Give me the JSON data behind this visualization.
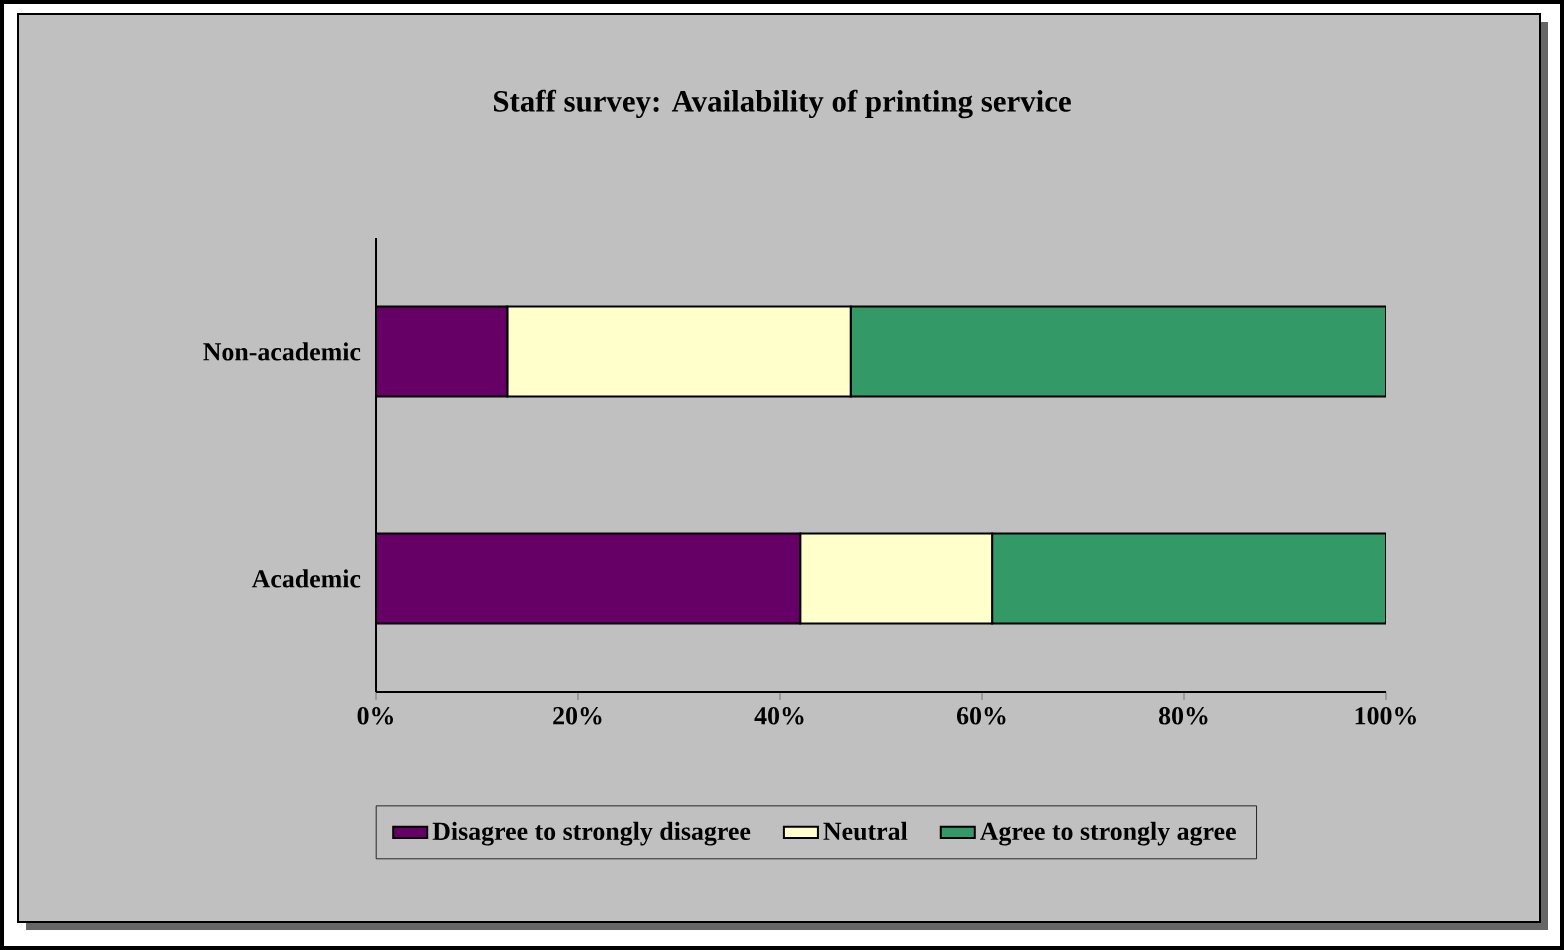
{
  "chart_data": {
    "type": "bar",
    "orientation": "horizontal",
    "stacked": true,
    "title": "Staff survey: Availability of printing service",
    "categories": [
      "Non-academic",
      "Academic"
    ],
    "series": [
      {
        "name": "Disagree to strongly disagree",
        "color": "#660066",
        "values": [
          13,
          42
        ]
      },
      {
        "name": "Neutral",
        "color": "#ffffcc",
        "values": [
          34,
          19
        ]
      },
      {
        "name": "Agree to strongly agree",
        "color": "#339966",
        "values": [
          53,
          39
        ]
      }
    ],
    "xlim": [
      0,
      100
    ],
    "xticks": [
      {
        "value": 0,
        "label": "0%"
      },
      {
        "value": 20,
        "label": "20%"
      },
      {
        "value": 40,
        "label": "40%"
      },
      {
        "value": 60,
        "label": "60%"
      },
      {
        "value": 80,
        "label": "80%"
      },
      {
        "value": 100,
        "label": "100%"
      }
    ],
    "legend": "bottom"
  }
}
